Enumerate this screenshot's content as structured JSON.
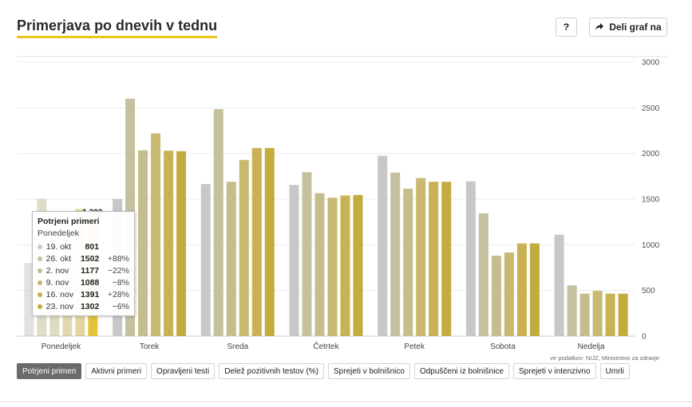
{
  "header": {
    "title": "Primerjava po dnevih v tednu",
    "help_label": "?",
    "share_label": "Deli graf na"
  },
  "chart_data": {
    "type": "bar",
    "categories": [
      "Ponedeljek",
      "Torek",
      "Sreda",
      "Četrtek",
      "Petek",
      "Sobota",
      "Nedelja"
    ],
    "series": [
      {
        "name": "19. okt",
        "color": "#c8c8c8",
        "values": [
          801,
          1502,
          1665,
          1655,
          1975,
          1695,
          1110
        ]
      },
      {
        "name": "26. okt",
        "color": "#c5c19e",
        "values": [
          1502,
          2600,
          2485,
          1795,
          1790,
          1345,
          555
        ]
      },
      {
        "name": "2. nov",
        "color": "#c6bd8c",
        "values": [
          1177,
          2035,
          1690,
          1565,
          1615,
          880,
          465
        ]
      },
      {
        "name": "9. nov",
        "color": "#c8b870",
        "values": [
          1088,
          2220,
          1930,
          1515,
          1730,
          915,
          495
        ]
      },
      {
        "name": "16. nov",
        "color": "#c8b254",
        "values": [
          1391,
          2030,
          2060,
          1540,
          1690,
          1015,
          465
        ]
      },
      {
        "name": "23. nov",
        "color": "#c4ab3e",
        "values": [
          1302,
          2025,
          2060,
          1545,
          1690,
          1015,
          465
        ]
      }
    ],
    "highlight": {
      "category": "Ponedeljek",
      "series": "23. nov",
      "color": "#e3c43a",
      "label": "1 302"
    },
    "ylim": [
      0,
      3000
    ],
    "yticks": [
      0,
      500,
      1000,
      1500,
      2000,
      2500,
      3000
    ],
    "ytick_labels": [
      "0",
      "500",
      "1000",
      "1500",
      "2000",
      "2500",
      "3000"
    ],
    "grid": true,
    "xlabel": "",
    "ylabel": ""
  },
  "tooltip": {
    "title": "Potrjeni primeri",
    "day": "Ponedeljek",
    "rows": [
      {
        "date": "19. okt",
        "value": "801",
        "change": ""
      },
      {
        "date": "26. okt",
        "value": "1502",
        "change": "+88%"
      },
      {
        "date": "2. nov",
        "value": "1177",
        "change": "−22%"
      },
      {
        "date": "9. nov",
        "value": "1088",
        "change": "−8%"
      },
      {
        "date": "16. nov",
        "value": "1391",
        "change": "+28%"
      },
      {
        "date": "23. nov",
        "value": "1302",
        "change": "−6%"
      }
    ]
  },
  "source": "vir podatkov: NIJZ, Ministrstvo za zdravje",
  "tabs": [
    {
      "label": "Potrjeni primeri",
      "active": true
    },
    {
      "label": "Aktivni primeri",
      "active": false
    },
    {
      "label": "Opravljeni testi",
      "active": false
    },
    {
      "label": "Delež pozitivnih testov (%)",
      "active": false
    },
    {
      "label": "Sprejeti v bolnišnico",
      "active": false
    },
    {
      "label": "Odpuščeni iz bolnišnice",
      "active": false
    },
    {
      "label": "Sprejeti v intenzivno",
      "active": false
    },
    {
      "label": "Umrli",
      "active": false
    }
  ]
}
